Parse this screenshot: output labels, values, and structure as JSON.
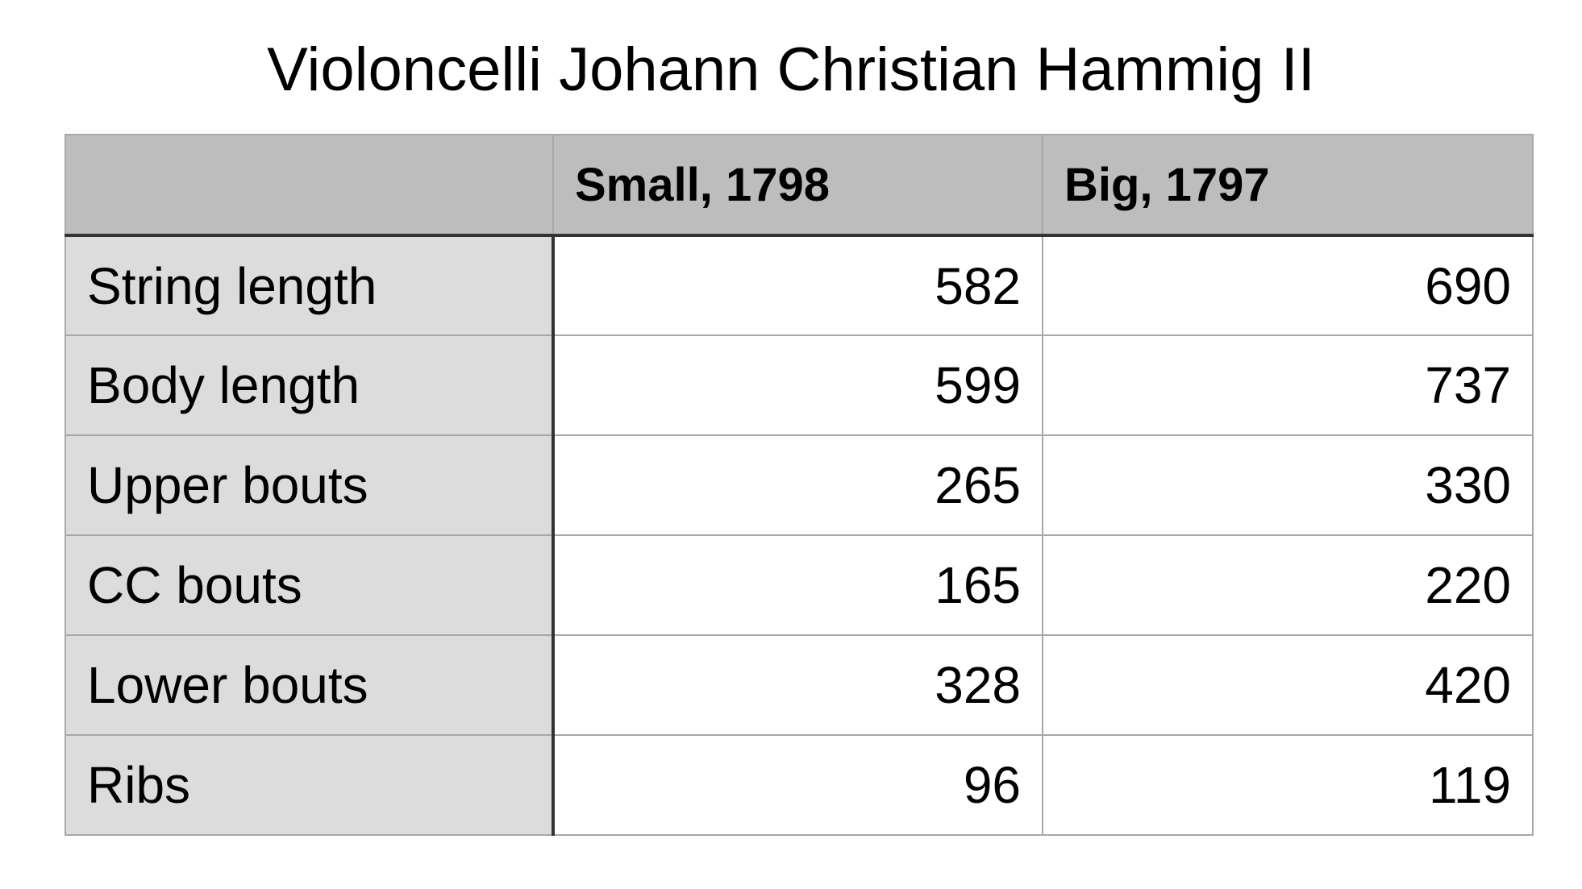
{
  "title": "Violoncelli Johann Christian Hammig II",
  "table": {
    "headers": [
      "",
      "Small, 1798",
      "Big, 1797"
    ],
    "rows": [
      {
        "label": "String length",
        "small": "582",
        "big": "690"
      },
      {
        "label": "Body length",
        "small": "599",
        "big": "737"
      },
      {
        "label": "Upper bouts",
        "small": "265",
        "big": "330"
      },
      {
        "label": "CC bouts",
        "small": "165",
        "big": "220"
      },
      {
        "label": "Lower bouts",
        "small": "328",
        "big": "420"
      },
      {
        "label": "Ribs",
        "small": "96",
        "big": "119"
      }
    ]
  },
  "colors": {
    "header_bg": "#bcbdbc",
    "label_bg": "#dcdcdc",
    "cell_bg": "#ffffff",
    "grid": "#a8a8a8",
    "rule": "#333333"
  }
}
